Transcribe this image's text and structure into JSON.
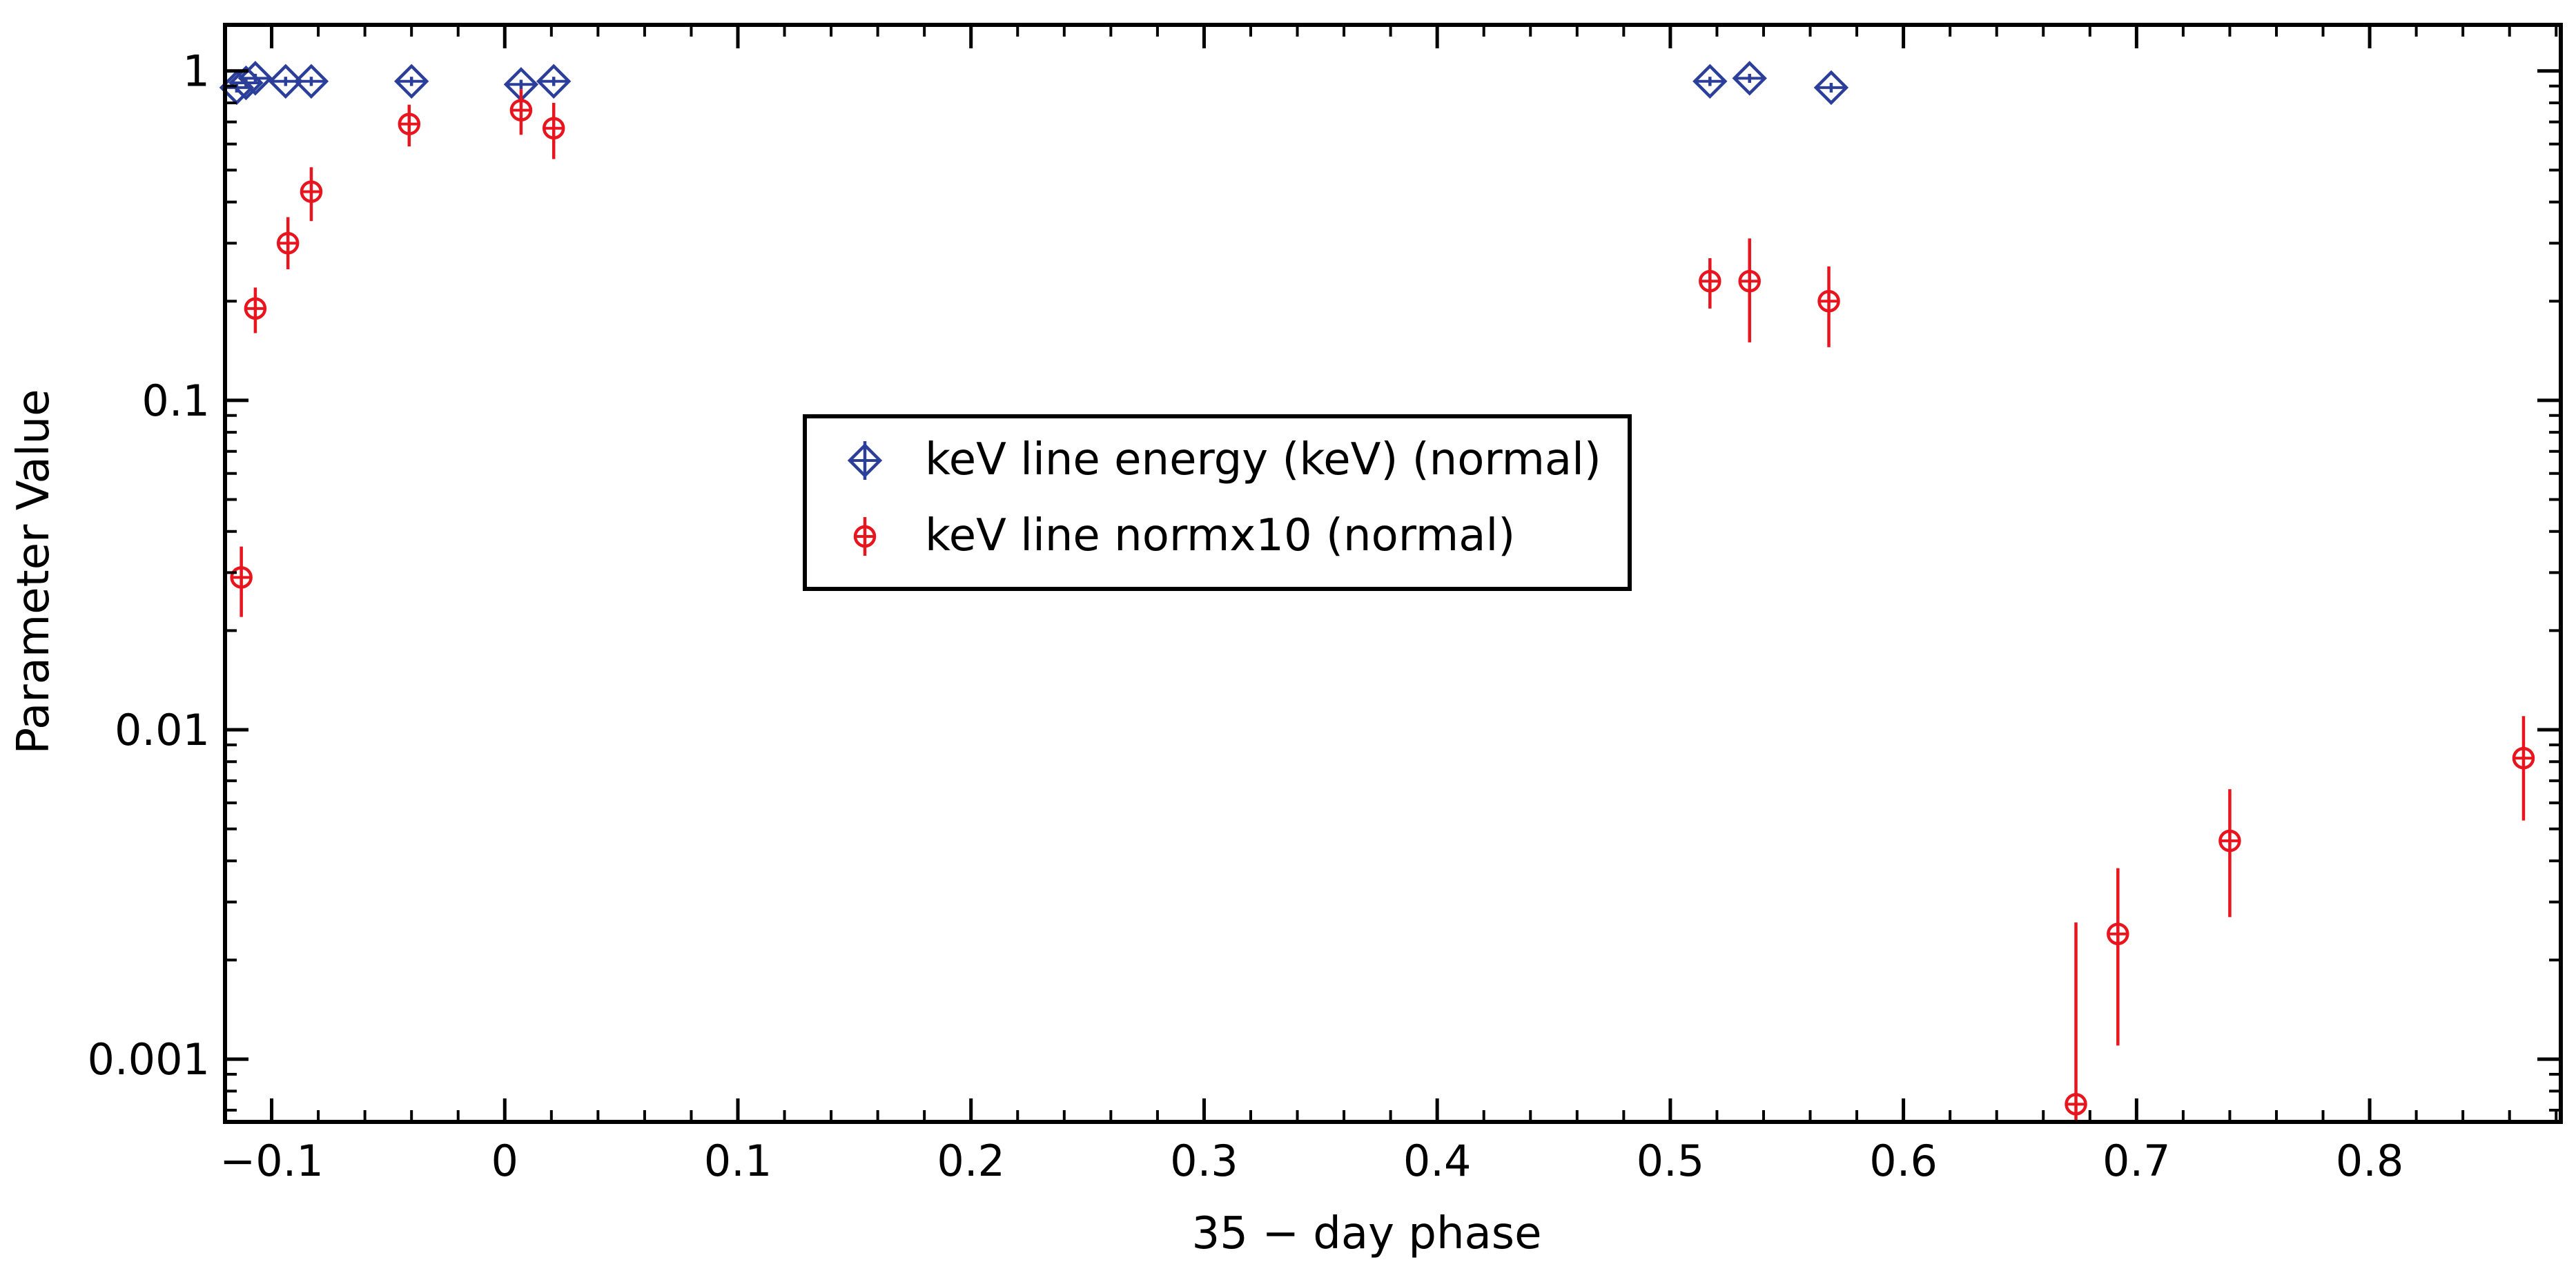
{
  "chart_data": {
    "type": "scatter",
    "title": "",
    "xlabel": "35 − day phase",
    "ylabel": "Parameter Value",
    "xlim": [
      -0.12,
      0.882
    ],
    "ylim": [
      0.000645,
      1.38
    ],
    "yscale": "log",
    "grid": false,
    "legend_position": "center-left",
    "x_ticks": [
      -0.1,
      0,
      0.1,
      0.2,
      0.3,
      0.4,
      0.5,
      0.6,
      0.7,
      0.8
    ],
    "x_tick_labels": [
      "−0.1",
      "0",
      "0.1",
      "0.2",
      "0.3",
      "0.4",
      "0.5",
      "0.6",
      "0.7",
      "0.8"
    ],
    "y_ticks": [
      0.001,
      0.01,
      0.1,
      1
    ],
    "y_tick_labels": [
      "0.001",
      "0.01",
      "0.1",
      "1"
    ],
    "series": [
      {
        "name": "keV line energy (keV) (normal)",
        "marker": "diamond",
        "color": "#2b3f9a",
        "points": [
          {
            "x": -0.115,
            "y": 0.89,
            "ylo": 0.86,
            "yhi": 0.92
          },
          {
            "x": -0.111,
            "y": 0.92,
            "ylo": 0.89,
            "yhi": 0.95
          },
          {
            "x": -0.107,
            "y": 0.95,
            "ylo": 0.92,
            "yhi": 0.98
          },
          {
            "x": -0.094,
            "y": 0.93,
            "ylo": 0.9,
            "yhi": 0.96
          },
          {
            "x": -0.083,
            "y": 0.93,
            "ylo": 0.9,
            "yhi": 0.96
          },
          {
            "x": -0.04,
            "y": 0.93,
            "ylo": 0.9,
            "yhi": 0.96
          },
          {
            "x": 0.007,
            "y": 0.91,
            "ylo": 0.88,
            "yhi": 0.94
          },
          {
            "x": 0.021,
            "y": 0.93,
            "ylo": 0.9,
            "yhi": 0.96
          },
          {
            "x": 0.517,
            "y": 0.93,
            "ylo": 0.9,
            "yhi": 0.96
          },
          {
            "x": 0.534,
            "y": 0.95,
            "ylo": 0.92,
            "yhi": 0.98
          },
          {
            "x": 0.569,
            "y": 0.89,
            "ylo": 0.86,
            "yhi": 0.92
          }
        ]
      },
      {
        "name": "keV line normx10 (normal)",
        "marker": "circle",
        "color": "#e8141e",
        "points": [
          {
            "x": -0.113,
            "y": 0.029,
            "ylo": 0.022,
            "yhi": 0.036
          },
          {
            "x": -0.107,
            "y": 0.19,
            "ylo": 0.16,
            "yhi": 0.22
          },
          {
            "x": -0.093,
            "y": 0.3,
            "ylo": 0.25,
            "yhi": 0.36
          },
          {
            "x": -0.083,
            "y": 0.43,
            "ylo": 0.35,
            "yhi": 0.51
          },
          {
            "x": -0.041,
            "y": 0.69,
            "ylo": 0.59,
            "yhi": 0.79
          },
          {
            "x": 0.007,
            "y": 0.76,
            "ylo": 0.64,
            "yhi": 0.88
          },
          {
            "x": 0.021,
            "y": 0.67,
            "ylo": 0.54,
            "yhi": 0.8
          },
          {
            "x": 0.517,
            "y": 0.23,
            "ylo": 0.19,
            "yhi": 0.27
          },
          {
            "x": 0.534,
            "y": 0.23,
            "ylo": 0.15,
            "yhi": 0.31
          },
          {
            "x": 0.568,
            "y": 0.2,
            "ylo": 0.145,
            "yhi": 0.255
          },
          {
            "x": 0.674,
            "y": 0.00073,
            "ylo": 0.00065,
            "yhi": 0.0026
          },
          {
            "x": 0.692,
            "y": 0.0024,
            "ylo": 0.0011,
            "yhi": 0.0038
          },
          {
            "x": 0.74,
            "y": 0.0046,
            "ylo": 0.0027,
            "yhi": 0.0066
          },
          {
            "x": 0.866,
            "y": 0.0082,
            "ylo": 0.0053,
            "yhi": 0.011
          }
        ]
      }
    ]
  }
}
